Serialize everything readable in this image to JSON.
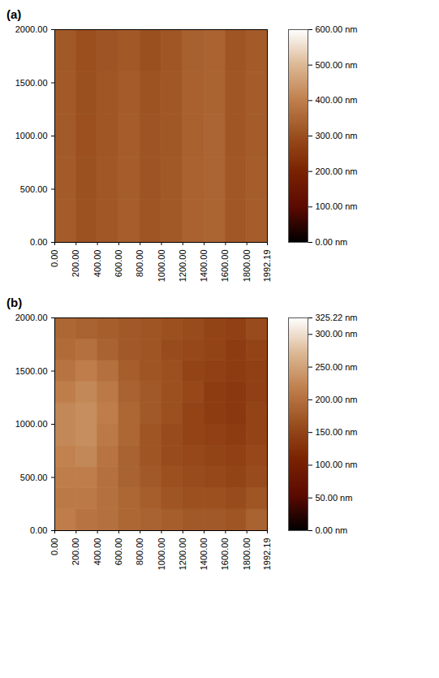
{
  "chart_data": [
    {
      "type": "heatmap",
      "title": "(a)",
      "x_bins": [
        0,
        200,
        400,
        600,
        800,
        1000,
        1200,
        1400,
        1600,
        1800,
        2000
      ],
      "y_bins": [
        0,
        400,
        800,
        1200,
        1600,
        2000
      ],
      "values": [
        [
          328,
          308,
          318,
          332,
          314,
          322,
          340,
          346,
          318,
          330
        ],
        [
          326,
          306,
          318,
          330,
          312,
          322,
          340,
          345,
          318,
          330
        ],
        [
          325,
          305,
          316,
          330,
          312,
          320,
          338,
          345,
          316,
          328
        ],
        [
          324,
          304,
          316,
          328,
          310,
          320,
          338,
          344,
          316,
          328
        ],
        [
          322,
          302,
          312,
          322,
          304,
          316,
          336,
          342,
          314,
          326
        ]
      ],
      "xlim": [
        0,
        1992.19
      ],
      "xticks": [
        {
          "value": 0,
          "label": "0.00"
        },
        {
          "value": 200,
          "label": "200.00"
        },
        {
          "value": 400,
          "label": "400.00"
        },
        {
          "value": 600,
          "label": "600.00"
        },
        {
          "value": 800,
          "label": "800.00"
        },
        {
          "value": 1000,
          "label": "1000.00"
        },
        {
          "value": 1200,
          "label": "1200.00"
        },
        {
          "value": 1400,
          "label": "1400.00"
        },
        {
          "value": 1600,
          "label": "1600.00"
        },
        {
          "value": 1800,
          "label": "1800.00"
        },
        {
          "value": 1992.19,
          "label": "1992.19"
        }
      ],
      "ylim": [
        0,
        2000
      ],
      "yticks": [
        {
          "value": 0,
          "label": "0.00"
        },
        {
          "value": 500,
          "label": "500.00"
        },
        {
          "value": 1000,
          "label": "1000.00"
        },
        {
          "value": 1500,
          "label": "1500.00"
        },
        {
          "value": 2000,
          "label": "2000.00"
        }
      ],
      "colorbar": {
        "range": [
          0,
          600
        ],
        "ticks": [
          {
            "value": 0,
            "label": "0.00 nm"
          },
          {
            "value": 100,
            "label": "100.00 nm"
          },
          {
            "value": 200,
            "label": "200.00 nm"
          },
          {
            "value": 300,
            "label": "300.00 nm"
          },
          {
            "value": 400,
            "label": "400.00 nm"
          },
          {
            "value": 500,
            "label": "500.00 nm"
          },
          {
            "value": 600,
            "label": "600.00 nm"
          }
        ]
      }
    },
    {
      "type": "heatmap",
      "title": "(b)",
      "x_bins": [
        0,
        200,
        400,
        600,
        800,
        1000,
        1200,
        1400,
        1600,
        1800,
        2000
      ],
      "y_bins": [
        0,
        200,
        400,
        600,
        800,
        1000,
        1200,
        1400,
        1600,
        1800,
        2000
      ],
      "values": [
        [
          215,
          205,
          200,
          190,
          185,
          180,
          175,
          175,
          170,
          185
        ],
        [
          210,
          210,
          200,
          190,
          180,
          170,
          165,
          165,
          160,
          170
        ],
        [
          215,
          215,
          200,
          185,
          175,
          165,
          160,
          155,
          150,
          160
        ],
        [
          220,
          225,
          205,
          185,
          170,
          160,
          155,
          150,
          145,
          155
        ],
        [
          225,
          230,
          210,
          190,
          170,
          160,
          150,
          145,
          140,
          150
        ],
        [
          225,
          230,
          215,
          190,
          175,
          165,
          150,
          140,
          135,
          150
        ],
        [
          215,
          225,
          210,
          185,
          175,
          165,
          155,
          140,
          135,
          145
        ],
        [
          205,
          215,
          200,
          180,
          170,
          165,
          150,
          145,
          140,
          145
        ],
        [
          195,
          200,
          185,
          175,
          170,
          160,
          155,
          150,
          140,
          150
        ],
        [
          190,
          185,
          180,
          175,
          170,
          165,
          160,
          150,
          145,
          160
        ]
      ],
      "xlim": [
        0,
        1992.19
      ],
      "xticks": [
        {
          "value": 0,
          "label": "0.00"
        },
        {
          "value": 200,
          "label": "200.00"
        },
        {
          "value": 400,
          "label": "400.00"
        },
        {
          "value": 600,
          "label": "600.00"
        },
        {
          "value": 800,
          "label": "800.00"
        },
        {
          "value": 1000,
          "label": "1000.00"
        },
        {
          "value": 1200,
          "label": "1200.00"
        },
        {
          "value": 1400,
          "label": "1400.00"
        },
        {
          "value": 1600,
          "label": "1600.00"
        },
        {
          "value": 1800,
          "label": "1800.00"
        },
        {
          "value": 1992.19,
          "label": "1992.19"
        }
      ],
      "ylim": [
        0,
        2000
      ],
      "yticks": [
        {
          "value": 0,
          "label": "0.00"
        },
        {
          "value": 500,
          "label": "500.00"
        },
        {
          "value": 1000,
          "label": "1000.00"
        },
        {
          "value": 1500,
          "label": "1500.00"
        },
        {
          "value": 2000,
          "label": "2000.00"
        }
      ],
      "colorbar": {
        "range": [
          0,
          325.22
        ],
        "ticks": [
          {
            "value": 0,
            "label": "0.00 nm"
          },
          {
            "value": 50,
            "label": "50.00 nm"
          },
          {
            "value": 100,
            "label": "100.00 nm"
          },
          {
            "value": 150,
            "label": "150.00 nm"
          },
          {
            "value": 200,
            "label": "200.00 nm"
          },
          {
            "value": 250,
            "label": "250.00 nm"
          },
          {
            "value": 300,
            "label": "300.00 nm"
          },
          {
            "value": 325.22,
            "label": "325.22 nm"
          }
        ]
      }
    }
  ]
}
